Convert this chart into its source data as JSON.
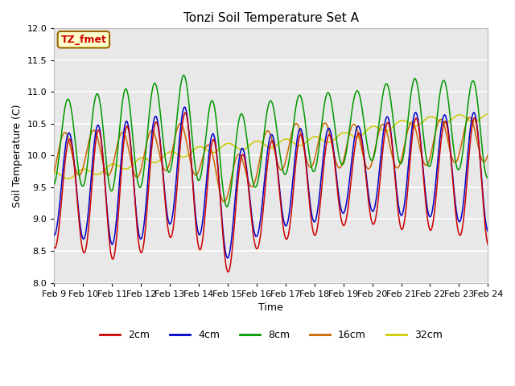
{
  "title": "Tonzi Soil Temperature Set A",
  "xlabel": "Time",
  "ylabel": "Soil Temperature (C)",
  "ylim": [
    8.0,
    12.0
  ],
  "yticks": [
    8.0,
    8.5,
    9.0,
    9.5,
    10.0,
    10.5,
    11.0,
    11.5,
    12.0
  ],
  "xtick_labels": [
    "Feb 9",
    "Feb 10",
    "Feb 11",
    "Feb 12",
    "Feb 13",
    "Feb 14",
    "Feb 15",
    "Feb 16",
    "Feb 17",
    "Feb 18",
    "Feb 19",
    "Feb 20",
    "Feb 21",
    "Feb 22",
    "Feb 23",
    "Feb 24"
  ],
  "legend_labels": [
    "2cm",
    "4cm",
    "8cm",
    "16cm",
    "32cm"
  ],
  "line_colors": [
    "#cc0000",
    "#0000cc",
    "#009900",
    "#cc6600",
    "#cccc00"
  ],
  "annotation_text": "TZ_fmet",
  "annotation_color": "#cc0000",
  "annotation_bg": "#ffffcc",
  "annotation_border": "#996600",
  "background_color": "#e8e8e8",
  "grid_color": "#ffffff"
}
